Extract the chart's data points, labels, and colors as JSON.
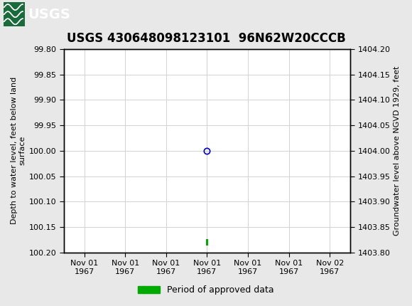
{
  "title": "USGS 430648098123101  96N62W20CCCB",
  "title_fontsize": 12,
  "header_bg_color": "#1a6b3c",
  "bg_color": "#e8e8e8",
  "plot_bg_color": "#ffffff",
  "body_bg_color": "#ffffff",
  "left_ylabel": "Depth to water level, feet below land\nsurface",
  "right_ylabel": "Groundwater level above NGVD 1929, feet",
  "ylabel_fontsize": 8,
  "ylim_left_top": 99.8,
  "ylim_left_bottom": 100.2,
  "ylim_right_top": 1404.2,
  "ylim_right_bottom": 1403.8,
  "yticks_left": [
    99.8,
    99.85,
    99.9,
    99.95,
    100.0,
    100.05,
    100.1,
    100.15,
    100.2
  ],
  "yticks_right": [
    1404.2,
    1404.15,
    1404.1,
    1404.05,
    1404.0,
    1403.95,
    1403.9,
    1403.85,
    1403.8
  ],
  "xlim": [
    -0.5,
    6.5
  ],
  "xtick_labels": [
    "Nov 01\n1967",
    "Nov 01\n1967",
    "Nov 01\n1967",
    "Nov 01\n1967",
    "Nov 01\n1967",
    "Nov 01\n1967",
    "Nov 02\n1967"
  ],
  "xtick_positions": [
    0,
    1,
    2,
    3,
    4,
    5,
    6
  ],
  "point_x": 3,
  "point_y": 100.0,
  "point_color": "#0000cc",
  "point_marker": "o",
  "point_size": 6,
  "bar_x": 3,
  "bar_y_center": 100.18,
  "bar_color": "#00aa00",
  "bar_width": 0.06,
  "bar_height": 0.012,
  "legend_label": "Period of approved data",
  "legend_color": "#00aa00",
  "grid_color": "#cccccc",
  "tick_fontsize": 8,
  "mono_font": "Courier New"
}
